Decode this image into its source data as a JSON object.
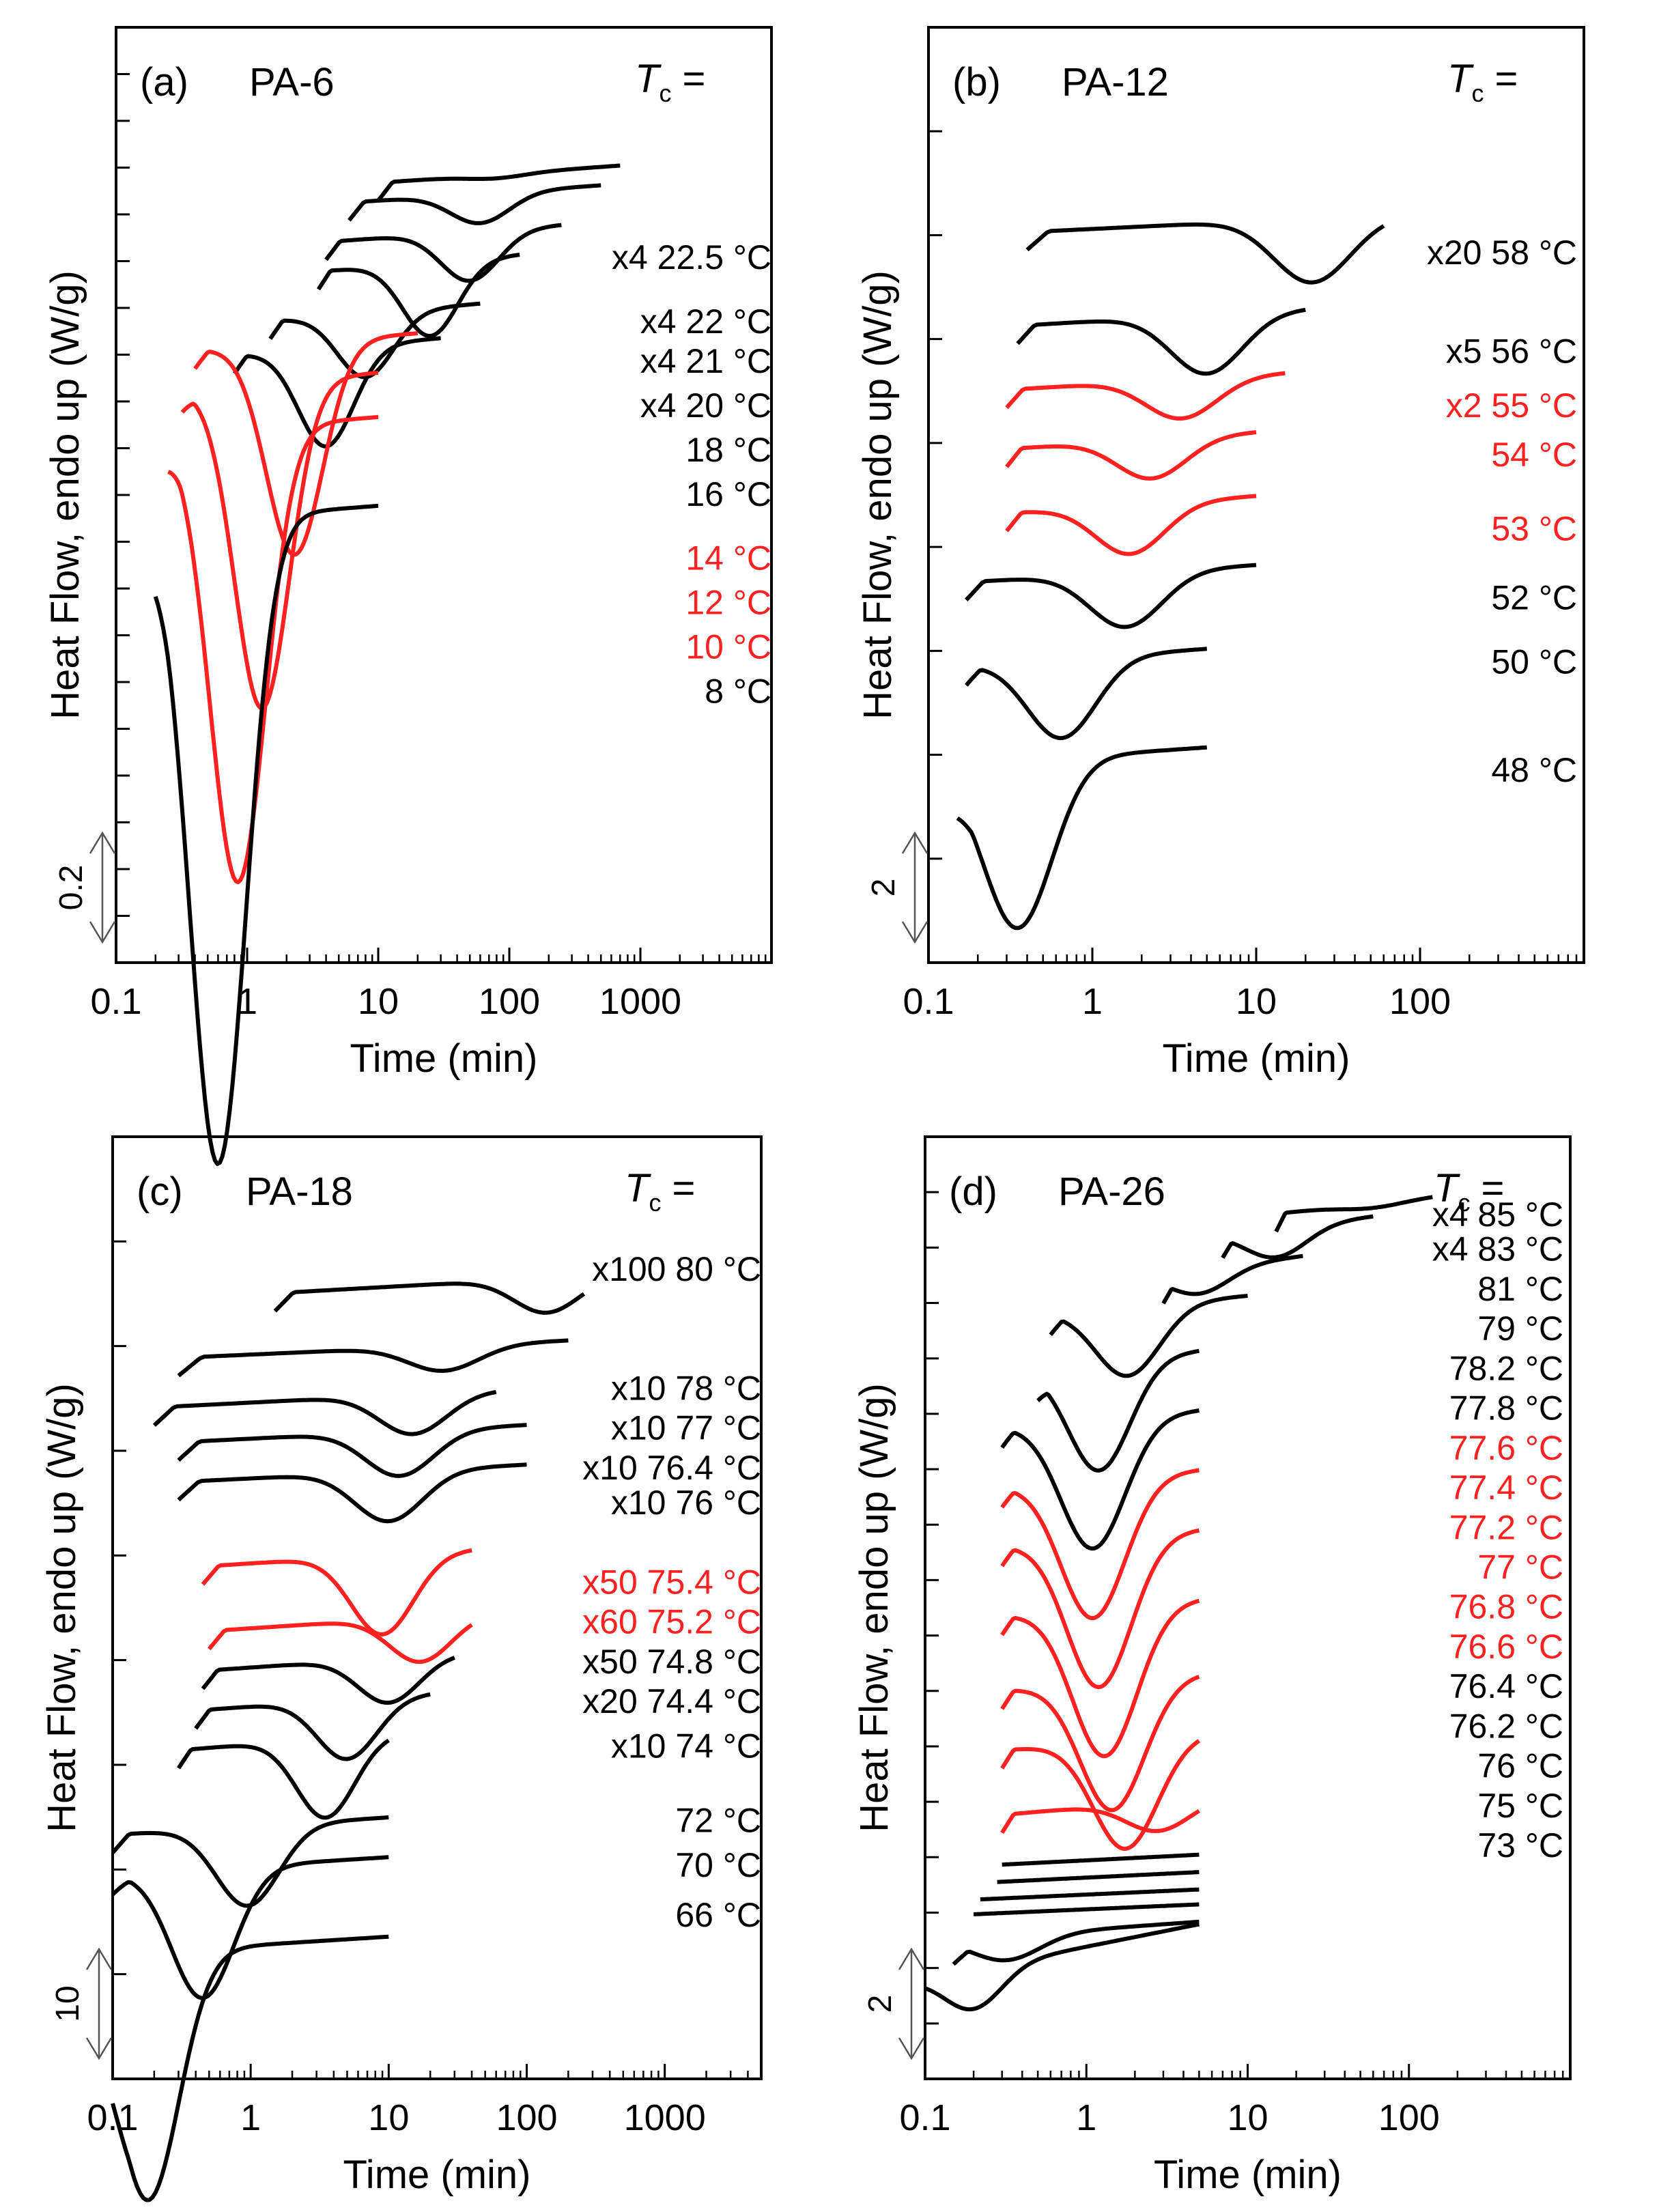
{
  "colors": {
    "normal": "#000000",
    "highlight": "#ff2020",
    "axis": "#000000"
  },
  "x_axis": {
    "label": "Time (min)",
    "ticks": [
      "0.1",
      "1",
      "10",
      "100",
      "1000"
    ]
  },
  "y_axis": {
    "label": "Heat Flow, endo up (W/g)"
  },
  "chart_data": [
    {
      "type": "line",
      "panel_label": "(a)",
      "material": "PA-6",
      "tc_label": "T",
      "tc_sub": "c",
      "tc_eq": " =",
      "xlabel": "Time (min)",
      "ylabel": "Heat Flow, endo up (W/g)",
      "xscale": "log",
      "xlim": [
        0.1,
        10000
      ],
      "scale_bar": "0.2",
      "y_minor_ticks": 20,
      "series": [
        {
          "label": "x4 22.5 °C",
          "color": "black",
          "x_start": 10,
          "x_end": 700,
          "peak_x": 80,
          "depth": 0.08,
          "level": 15.4,
          "label_level": 13.9,
          "kind": "dip"
        },
        {
          "label": "x4 22 °C",
          "color": "black",
          "x_start": 6,
          "x_end": 500,
          "peak_x": 60,
          "depth": 0.6,
          "level": 15.0,
          "label_level": 12.6,
          "kind": "dip"
        },
        {
          "label": "x4 21 °C",
          "color": "black",
          "x_start": 4,
          "x_end": 250,
          "peak_x": 50,
          "depth": 1.0,
          "level": 14.2,
          "label_level": 11.8,
          "kind": "dip"
        },
        {
          "label": "x4 20 °C",
          "color": "black",
          "x_start": 3.5,
          "x_end": 120,
          "peak_x": 25,
          "depth": 1.5,
          "level": 13.6,
          "label_level": 10.9,
          "kind": "dip"
        },
        {
          "label": "18 °C",
          "color": "black",
          "x_start": 1.5,
          "x_end": 60,
          "peak_x": 8,
          "depth": 1.3,
          "level": 12.6,
          "label_level": 10.0,
          "kind": "dip"
        },
        {
          "label": "16 °C",
          "color": "black",
          "x_start": 0.8,
          "x_end": 30,
          "peak_x": 4,
          "depth": 2.0,
          "level": 11.9,
          "label_level": 9.1,
          "kind": "dip"
        },
        {
          "label": "14 °C",
          "color": "red",
          "x_start": 0.4,
          "x_end": 20,
          "peak_x": 2.3,
          "depth": 4.3,
          "level": 12.0,
          "label_level": 7.8,
          "kind": "dip"
        },
        {
          "label": "12 °C",
          "color": "red",
          "x_start": 0.32,
          "x_end": 10,
          "peak_x": 1.3,
          "depth": 6.6,
          "level": 11.2,
          "label_level": 6.9,
          "kind": "dip"
        },
        {
          "label": "10 °C",
          "color": "red",
          "x_start": 0.25,
          "x_end": 10,
          "peak_x": 0.85,
          "depth": 9.2,
          "level": 10.3,
          "label_level": 6.0,
          "kind": "dip"
        },
        {
          "label": "8 °C",
          "color": "black",
          "x_start": 0.2,
          "x_end": 10,
          "peak_x": 0.6,
          "depth": 13.1,
          "level": 8.5,
          "label_level": 5.1,
          "kind": "dip"
        }
      ]
    },
    {
      "type": "line",
      "panel_label": "(b)",
      "material": "PA-12",
      "tc_label": "T",
      "tc_sub": "c",
      "tc_eq": " =",
      "xlabel": "Time (min)",
      "ylabel": "Heat Flow, endo up (W/g)",
      "xscale": "log",
      "xlim": [
        0.1,
        1000
      ],
      "scale_bar": "2",
      "y_minor_ticks": 9,
      "series": [
        {
          "label": "x20 58 °C",
          "prefix": "x20",
          "temp": "58 °C",
          "color": "black",
          "x_start": 0.4,
          "x_end": 60,
          "peak_x": 22,
          "depth": 1.3,
          "level": 14.4,
          "label_level": 14.0,
          "kind": "dip"
        },
        {
          "label": "x5 56 °C",
          "prefix": "x5",
          "temp": "56 °C",
          "color": "black",
          "x_start": 0.35,
          "x_end": 20,
          "peak_x": 5,
          "depth": 1.2,
          "level": 12.5,
          "label_level": 12.0,
          "kind": "dip"
        },
        {
          "label": "x2 55 °C",
          "prefix": "x2",
          "temp": "55 °C",
          "color": "red",
          "x_start": 0.3,
          "x_end": 15,
          "peak_x": 3.5,
          "depth": 0.8,
          "level": 11.2,
          "label_level": 10.9,
          "kind": "dip"
        },
        {
          "label": "54 °C",
          "prefix": "",
          "temp": "54 °C",
          "color": "red",
          "x_start": 0.3,
          "x_end": 10,
          "peak_x": 2.3,
          "depth": 0.8,
          "level": 10.0,
          "label_level": 9.9,
          "kind": "dip"
        },
        {
          "label": "53 °C",
          "prefix": "",
          "temp": "53 °C",
          "color": "red",
          "x_start": 0.3,
          "x_end": 10,
          "peak_x": 1.7,
          "depth": 1.0,
          "level": 8.7,
          "label_level": 8.4,
          "kind": "dip"
        },
        {
          "label": "52 °C",
          "prefix": "",
          "temp": "52 °C",
          "color": "black",
          "x_start": 0.17,
          "x_end": 10,
          "peak_x": 1.6,
          "depth": 1.1,
          "level": 7.3,
          "label_level": 7.0,
          "kind": "dip"
        },
        {
          "label": "50 °C",
          "prefix": "",
          "temp": "50 °C",
          "color": "black",
          "x_start": 0.17,
          "x_end": 5,
          "peak_x": 0.65,
          "depth": 1.6,
          "level": 5.6,
          "label_level": 5.7,
          "kind": "dip"
        },
        {
          "label": "48 °C",
          "prefix": "",
          "temp": "48 °C",
          "color": "black",
          "x_start": 0.15,
          "x_end": 5,
          "peak_x": 0.35,
          "depth": 3.4,
          "level": 3.6,
          "label_level": 3.5,
          "kind": "dip"
        }
      ]
    },
    {
      "type": "line",
      "panel_label": "(c)",
      "material": "PA-18",
      "tc_label": "T",
      "tc_sub": "c",
      "tc_eq": " =",
      "xlabel": "Time (min)",
      "ylabel": "Heat Flow, endo up (W/g)",
      "xscale": "log",
      "xlim": [
        0.1,
        5000
      ],
      "scale_bar": "10",
      "y_minor_ticks": 9,
      "series": [
        {
          "label": "x100 80 °C",
          "prefix": "x100",
          "temp": "80 °C",
          "color": "black",
          "x_start": 1.5,
          "x_end": 260,
          "peak_x": 140,
          "depth": 0.7,
          "level": 15.4,
          "label_level": 15.9,
          "kind": "dip"
        },
        {
          "label": "x10 78 °C",
          "prefix": "x10",
          "temp": "78 °C",
          "color": "black",
          "x_start": 0.3,
          "x_end": 200,
          "peak_x": 25,
          "depth": 0.5,
          "level": 14.1,
          "label_level": 13.5,
          "kind": "dip"
        },
        {
          "label": "x10 77 °C",
          "prefix": "x10",
          "temp": "77 °C",
          "color": "black",
          "x_start": 0.2,
          "x_end": 60,
          "peak_x": 15,
          "depth": 0.8,
          "level": 13.1,
          "label_level": 12.7,
          "kind": "dip"
        },
        {
          "label": "x10 76.4 °C",
          "prefix": "x10",
          "temp": "76.4 °C",
          "color": "black",
          "x_start": 0.3,
          "x_end": 100,
          "peak_x": 12,
          "depth": 0.9,
          "level": 12.4,
          "label_level": 11.9,
          "kind": "dip"
        },
        {
          "label": "x10 76 °C",
          "prefix": "x10",
          "temp": "76 °C",
          "color": "black",
          "x_start": 0.3,
          "x_end": 100,
          "peak_x": 10,
          "depth": 1.0,
          "level": 11.6,
          "label_level": 11.2,
          "kind": "dip"
        },
        {
          "label": "x50 75.4 °C",
          "prefix": "x50",
          "temp": "75.4 °C",
          "color": "red",
          "x_start": 0.45,
          "x_end": 40,
          "peak_x": 9,
          "depth": 1.6,
          "level": 9.9,
          "label_level": 9.6,
          "kind": "dip"
        },
        {
          "label": "x60 75.2 °C",
          "prefix": "x60",
          "temp": "75.2 °C",
          "color": "red",
          "x_start": 0.5,
          "x_end": 40,
          "peak_x": 17,
          "depth": 0.9,
          "level": 8.6,
          "label_level": 8.8,
          "kind": "dip"
        },
        {
          "label": "x50 74.8 °C",
          "prefix": "x50",
          "temp": "74.8 °C",
          "color": "black",
          "x_start": 0.45,
          "x_end": 30,
          "peak_x": 10,
          "depth": 0.9,
          "level": 7.8,
          "label_level": 8.0,
          "kind": "dip"
        },
        {
          "label": "x20 74.4 °C",
          "prefix": "x20",
          "temp": "74.4 °C",
          "color": "black",
          "x_start": 0.4,
          "x_end": 20,
          "peak_x": 5,
          "depth": 1.2,
          "level": 7.0,
          "label_level": 7.2,
          "kind": "dip"
        },
        {
          "label": "x10 74 °C",
          "prefix": "x10",
          "temp": "74 °C",
          "color": "black",
          "x_start": 0.3,
          "x_end": 10,
          "peak_x": 3.5,
          "depth": 1.6,
          "level": 6.2,
          "label_level": 6.3,
          "kind": "dip"
        },
        {
          "label": "72 °C",
          "prefix": "",
          "temp": "72 °C",
          "color": "black",
          "x_start": 0.1,
          "x_end": 10,
          "peak_x": 0.95,
          "depth": 1.6,
          "level": 4.5,
          "label_level": 4.8,
          "kind": "dip"
        },
        {
          "label": "70 °C",
          "prefix": "",
          "temp": "70 °C",
          "color": "black",
          "x_start": 0.1,
          "x_end": 10,
          "peak_x": 0.45,
          "depth": 2.6,
          "level": 3.7,
          "label_level": 3.9,
          "kind": "dip"
        },
        {
          "label": "66 °C",
          "prefix": "",
          "temp": "66 °C",
          "color": "black",
          "x_start": 0.1,
          "x_end": 10,
          "peak_x": 0.18,
          "depth": 5.0,
          "level": 2.1,
          "label_level": 2.9,
          "kind": "dip"
        }
      ]
    },
    {
      "type": "line",
      "panel_label": "(d)",
      "material": "PA-26",
      "tc_label": "T",
      "tc_sub": "c",
      "tc_eq": " =",
      "xlabel": "Time (min)",
      "ylabel": "Heat Flow, endo up (W/g)",
      "xscale": "log",
      "xlim": [
        0.1,
        1000
      ],
      "scale_bar": "2",
      "y_minor_ticks": 17,
      "series": [
        {
          "label": "x4 85 °C",
          "color": "black",
          "x_start": 15,
          "x_end": 140,
          "peak_x": 60,
          "depth": 0.1,
          "level": 17.0,
          "label_level": 17.0,
          "kind": "dip"
        },
        {
          "label": "x4 83 °C",
          "color": "black",
          "x_start": 7,
          "x_end": 60,
          "peak_x": 15,
          "depth": 0.6,
          "level": 16.6,
          "label_level": 16.3,
          "kind": "dip"
        },
        {
          "label": "81 °C",
          "color": "black",
          "x_start": 3,
          "x_end": 22,
          "peak_x": 5,
          "depth": 0.5,
          "level": 15.8,
          "label_level": 15.5,
          "kind": "dip"
        },
        {
          "label": "79 °C",
          "color": "black",
          "x_start": 0.6,
          "x_end": 10,
          "peak_x": 1.8,
          "depth": 1.4,
          "level": 15.0,
          "label_level": 14.7,
          "kind": "dip"
        },
        {
          "label": "78.2 °C",
          "color": "black",
          "x_start": 0.5,
          "x_end": 5,
          "peak_x": 1.2,
          "depth": 2.2,
          "level": 13.9,
          "label_level": 13.9,
          "kind": "dip"
        },
        {
          "label": "77.8 °C",
          "color": "black",
          "x_start": 0.3,
          "x_end": 5,
          "peak_x": 1.1,
          "depth": 2.6,
          "level": 12.7,
          "label_level": 13.1,
          "kind": "dip"
        },
        {
          "label": "77.6 °C",
          "color": "red",
          "x_start": 0.3,
          "x_end": 5,
          "peak_x": 1.1,
          "depth": 2.8,
          "level": 11.5,
          "label_level": 12.3,
          "kind": "dip"
        },
        {
          "label": "77.4 °C",
          "color": "red",
          "x_start": 0.3,
          "x_end": 5,
          "peak_x": 1.2,
          "depth": 3.0,
          "level": 10.3,
          "label_level": 11.5,
          "kind": "dip"
        },
        {
          "label": "77.2 °C",
          "color": "red",
          "x_start": 0.3,
          "x_end": 5,
          "peak_x": 1.3,
          "depth": 3.0,
          "level": 8.9,
          "label_level": 10.7,
          "kind": "dip"
        },
        {
          "label": "77 °C",
          "color": "red",
          "x_start": 0.3,
          "x_end": 5,
          "peak_x": 1.45,
          "depth": 2.6,
          "level": 7.4,
          "label_level": 9.9,
          "kind": "dip"
        },
        {
          "label": "76.8 °C",
          "color": "red",
          "x_start": 0.3,
          "x_end": 5,
          "peak_x": 1.75,
          "depth": 2.2,
          "level": 6.2,
          "label_level": 9.1,
          "kind": "dip"
        },
        {
          "label": "76.6 °C",
          "color": "red",
          "x_start": 0.3,
          "x_end": 5,
          "peak_x": 2.8,
          "depth": 0.6,
          "level": 4.9,
          "label_level": 8.3,
          "kind": "dip"
        },
        {
          "label": "76.4 °C",
          "color": "black",
          "x_start": 0.3,
          "x_end": 5,
          "peak_x": 0.3,
          "depth": 0.3,
          "level": 3.9,
          "label_level": 7.5,
          "kind": "flat"
        },
        {
          "label": "76.2 °C",
          "color": "black",
          "x_start": 0.28,
          "x_end": 5,
          "peak_x": 0.28,
          "depth": 0.3,
          "level": 3.55,
          "label_level": 6.7,
          "kind": "flat"
        },
        {
          "label": "76 °C",
          "color": "black",
          "x_start": 0.22,
          "x_end": 5,
          "peak_x": 0.22,
          "depth": 0.3,
          "level": 3.2,
          "label_level": 5.9,
          "kind": "flat"
        },
        {
          "label": "75 °C",
          "color": "black",
          "x_start": 0.2,
          "x_end": 5,
          "peak_x": 0.2,
          "depth": 0.3,
          "level": 2.9,
          "label_level": 5.1,
          "kind": "flat"
        },
        {
          "label": "73 °C",
          "color": "black",
          "x_start": 0.15,
          "x_end": 5,
          "peak_x": 0.32,
          "depth": 0.5,
          "level": 2.4,
          "label_level": 4.3,
          "kind": "dip"
        },
        {
          "label": "",
          "color": "black",
          "x_start": 0.1,
          "x_end": 5,
          "peak_x": 0.2,
          "depth": 0.8,
          "level": 1.6,
          "label_level": 3.5,
          "kind": "broad"
        }
      ]
    }
  ]
}
